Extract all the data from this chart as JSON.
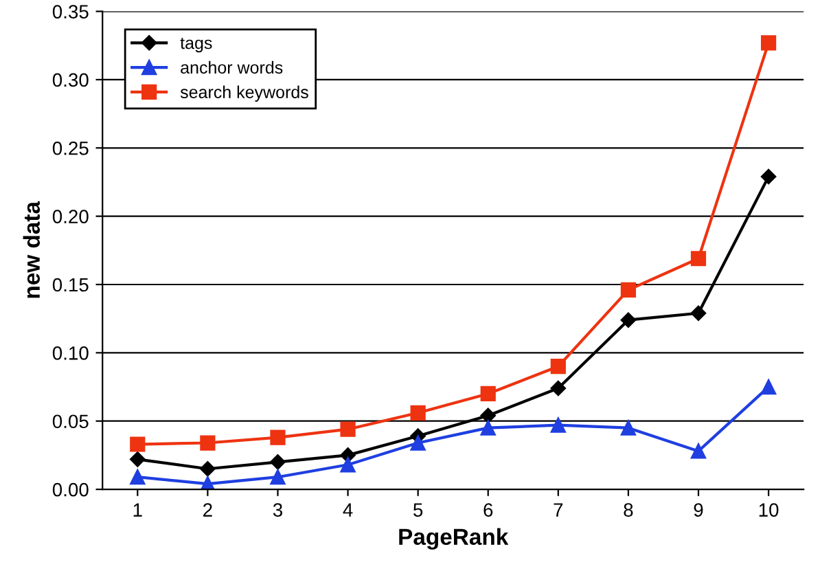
{
  "chart_data": {
    "type": "line",
    "xlabel": "PageRank",
    "ylabel": "new data",
    "categories": [
      "1",
      "2",
      "3",
      "4",
      "5",
      "6",
      "7",
      "8",
      "9",
      "10"
    ],
    "series": [
      {
        "name": "tags",
        "color": "#000000",
        "marker": "diamond",
        "values": [
          0.022,
          0.015,
          0.02,
          0.025,
          0.039,
          0.054,
          0.074,
          0.124,
          0.129,
          0.229
        ]
      },
      {
        "name": "anchor words",
        "color": "#1f3fe0",
        "marker": "triangle",
        "values": [
          0.009,
          0.004,
          0.009,
          0.018,
          0.034,
          0.045,
          0.047,
          0.045,
          0.028,
          0.075
        ]
      },
      {
        "name": "search keywords",
        "color": "#ee3311",
        "marker": "square",
        "values": [
          0.033,
          0.034,
          0.038,
          0.044,
          0.056,
          0.07,
          0.09,
          0.146,
          0.169,
          0.327
        ]
      }
    ],
    "ylim": [
      0,
      0.35
    ],
    "yticks": [
      {
        "value": 0,
        "label": "0.00"
      },
      {
        "value": 0.05,
        "label": "0.05"
      },
      {
        "value": 0.1,
        "label": "0.10"
      },
      {
        "value": 0.15,
        "label": "0.15"
      },
      {
        "value": 0.2,
        "label": "0.20"
      },
      {
        "value": 0.25,
        "label": "0.25"
      },
      {
        "value": 0.3,
        "label": "0.30"
      },
      {
        "value": 0.35,
        "label": "0.35"
      }
    ],
    "grid": "y",
    "legend": "top left"
  }
}
